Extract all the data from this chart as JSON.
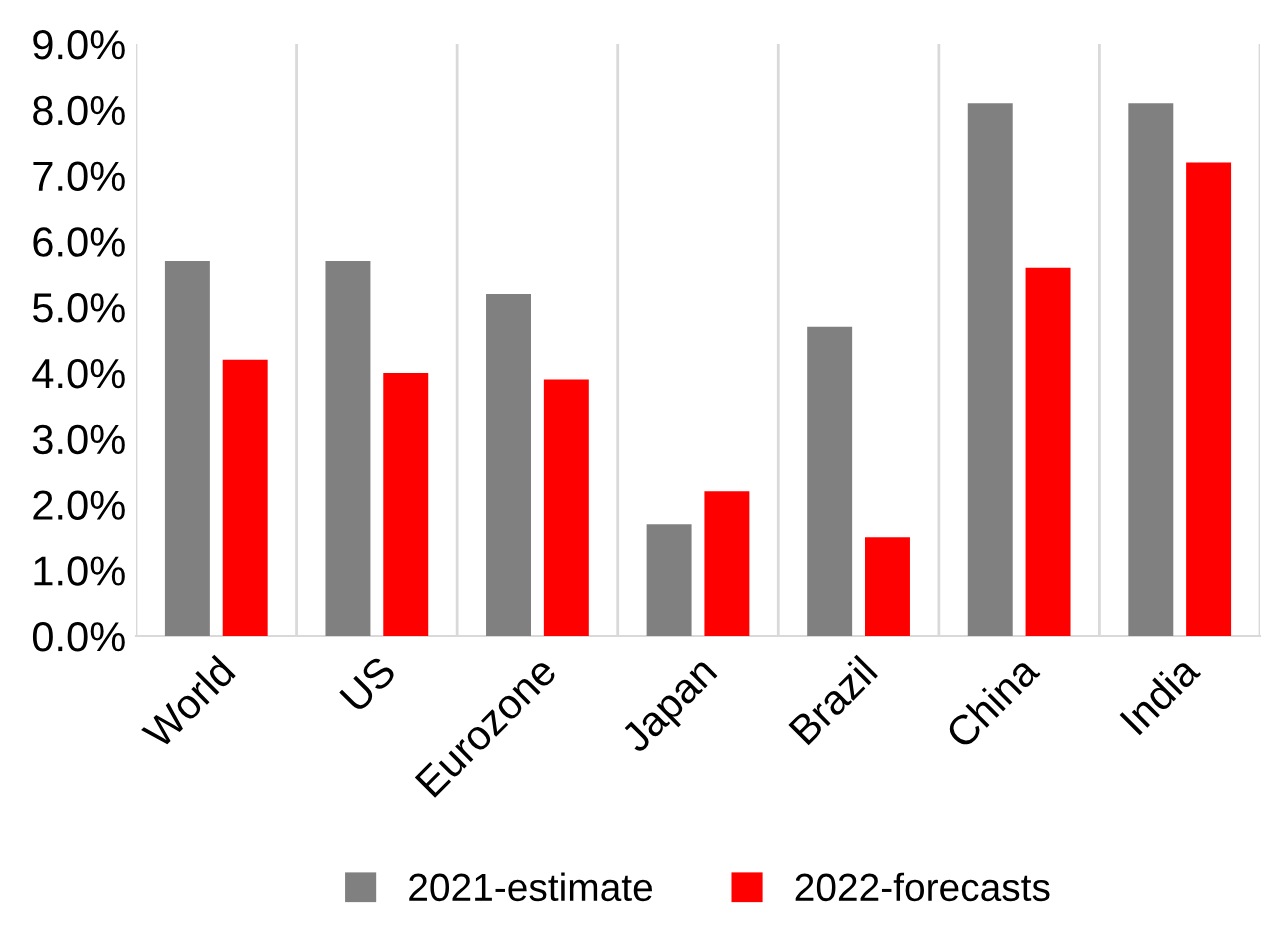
{
  "chart_data": {
    "type": "bar",
    "categories": [
      "World",
      "US",
      "Eurozone",
      "Japan",
      "Brazil",
      "China",
      "India"
    ],
    "series": [
      {
        "name": "2021-estimate",
        "color": "#808080",
        "values": [
          5.7,
          5.7,
          5.2,
          1.7,
          4.7,
          8.1,
          8.1
        ]
      },
      {
        "name": "2022-forecasts",
        "color": "#ff0000",
        "values": [
          4.2,
          4.0,
          3.9,
          2.2,
          1.5,
          5.6,
          7.2
        ]
      }
    ],
    "ylim": [
      0,
      9
    ],
    "yticks": [
      {
        "value": 0,
        "label": "0.0%"
      },
      {
        "value": 1,
        "label": "1.0%"
      },
      {
        "value": 2,
        "label": "2.0%"
      },
      {
        "value": 3,
        "label": "3.0%"
      },
      {
        "value": 4,
        "label": "4.0%"
      },
      {
        "value": 5,
        "label": "5.0%"
      },
      {
        "value": 6,
        "label": "6.0%"
      },
      {
        "value": 7,
        "label": "7.0%"
      },
      {
        "value": 8,
        "label": "8.0%"
      },
      {
        "value": 9,
        "label": "9.0%"
      }
    ],
    "grid": "x",
    "legend": "bottom"
  }
}
